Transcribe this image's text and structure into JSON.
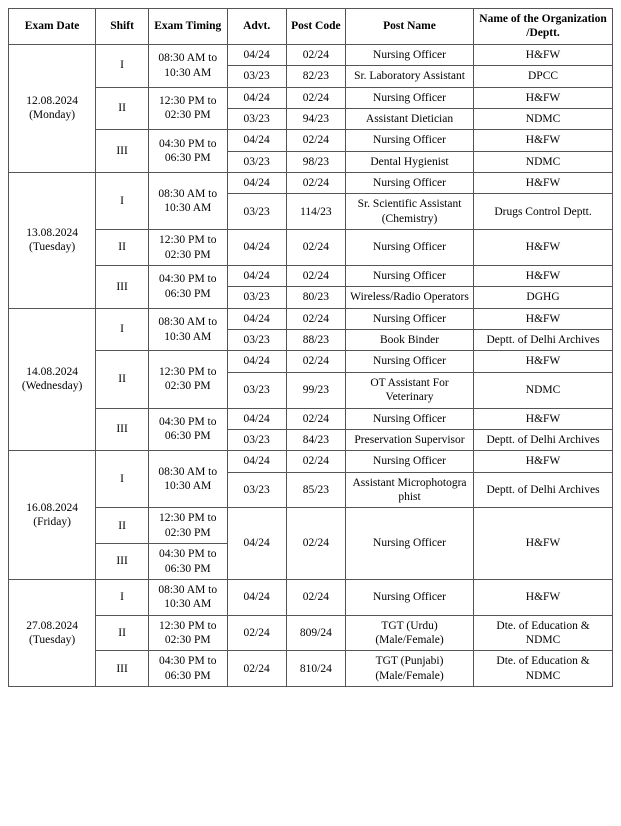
{
  "headers": {
    "date": "Exam Date",
    "shift": "Shift",
    "timing": "Exam Timing",
    "advt": "Advt.",
    "postcode": "Post Code",
    "postname": "Post Name",
    "org": "Name of the Organization /Deptt."
  },
  "dates": [
    {
      "date": "12.08.2024 (Monday)"
    },
    {
      "date": "13.08.2024 (Tuesday)"
    },
    {
      "date": "14.08.2024 (Wednesday)"
    },
    {
      "date": "16.08.2024 (Friday)"
    },
    {
      "date": "27.08.2024 (Tuesday)"
    }
  ],
  "shifts": {
    "s1": "I",
    "s2": "II",
    "s3": "III"
  },
  "timings": {
    "t1": "08:30 AM to 10:30 AM",
    "t2": "12:30 PM to 02:30 PM",
    "t3": "04:30 PM to 06:30 PM"
  },
  "rows": {
    "r1": {
      "advt": "04/24",
      "post": "02/24",
      "pname": "Nursing Officer",
      "org": "H&FW"
    },
    "r2": {
      "advt": "03/23",
      "post": "82/23",
      "pname": "Sr. Laboratory Assistant",
      "org": "DPCC"
    },
    "r3": {
      "advt": "04/24",
      "post": "02/24",
      "pname": "Nursing Officer",
      "org": "H&FW"
    },
    "r4": {
      "advt": "03/23",
      "post": "94/23",
      "pname": "Assistant Dietician",
      "org": "NDMC"
    },
    "r5": {
      "advt": "04/24",
      "post": "02/24",
      "pname": "Nursing Officer",
      "org": "H&FW"
    },
    "r6": {
      "advt": "03/23",
      "post": "98/23",
      "pname": "Dental Hygienist",
      "org": "NDMC"
    },
    "r7": {
      "advt": "04/24",
      "post": "02/24",
      "pname": "Nursing Officer",
      "org": "H&FW"
    },
    "r8": {
      "advt": "03/23",
      "post": "114/23",
      "pname": "Sr. Scientific Assistant (Chemistry)",
      "org": "Drugs Control Deptt."
    },
    "r9": {
      "advt": "04/24",
      "post": "02/24",
      "pname": "Nursing Officer",
      "org": "H&FW"
    },
    "r10": {
      "advt": "04/24",
      "post": "02/24",
      "pname": "Nursing Officer",
      "org": "H&FW"
    },
    "r11": {
      "advt": "03/23",
      "post": "80/23",
      "pname": "Wireless/Radio Operators",
      "org": "DGHG"
    },
    "r12": {
      "advt": "04/24",
      "post": "02/24",
      "pname": "Nursing Officer",
      "org": "H&FW"
    },
    "r13": {
      "advt": "03/23",
      "post": "88/23",
      "pname": "Book Binder",
      "org": "Deptt. of Delhi Archives"
    },
    "r14": {
      "advt": "04/24",
      "post": "02/24",
      "pname": "Nursing Officer",
      "org": "H&FW"
    },
    "r15": {
      "advt": "03/23",
      "post": "99/23",
      "pname": "OT Assistant For Veterinary",
      "org": "NDMC"
    },
    "r16": {
      "advt": "04/24",
      "post": "02/24",
      "pname": "Nursing Officer",
      "org": "H&FW"
    },
    "r17": {
      "advt": "03/23",
      "post": "84/23",
      "pname": "Preservation Supervisor",
      "org": "Deptt. of Delhi Archives"
    },
    "r18": {
      "advt": "04/24",
      "post": "02/24",
      "pname": "Nursing Officer",
      "org": "H&FW"
    },
    "r19": {
      "advt": "03/23",
      "post": "85/23",
      "pname": "Assistant Microphotogra phist",
      "org": "Deptt. of Delhi Archives"
    },
    "r20": {
      "advt": "04/24",
      "post": "02/24",
      "pname": "Nursing Officer",
      "org": "H&FW"
    },
    "r21": {
      "advt": "04/24",
      "post": "02/24",
      "pname": "Nursing Officer",
      "org": "H&FW"
    },
    "r22": {
      "advt": "02/24",
      "post": "809/24",
      "pname": "TGT (Urdu) (Male/Female)",
      "org": "Dte. of Education & NDMC"
    },
    "r23": {
      "advt": "02/24",
      "post": "810/24",
      "pname": "TGT (Punjabi) (Male/Female)",
      "org": "Dte. of Education & NDMC"
    }
  },
  "style": {
    "font_family": "Times New Roman, serif",
    "font_size_pt": 11.5,
    "border_color": "#555555",
    "background_color": "#ffffff",
    "text_color": "#000000"
  }
}
